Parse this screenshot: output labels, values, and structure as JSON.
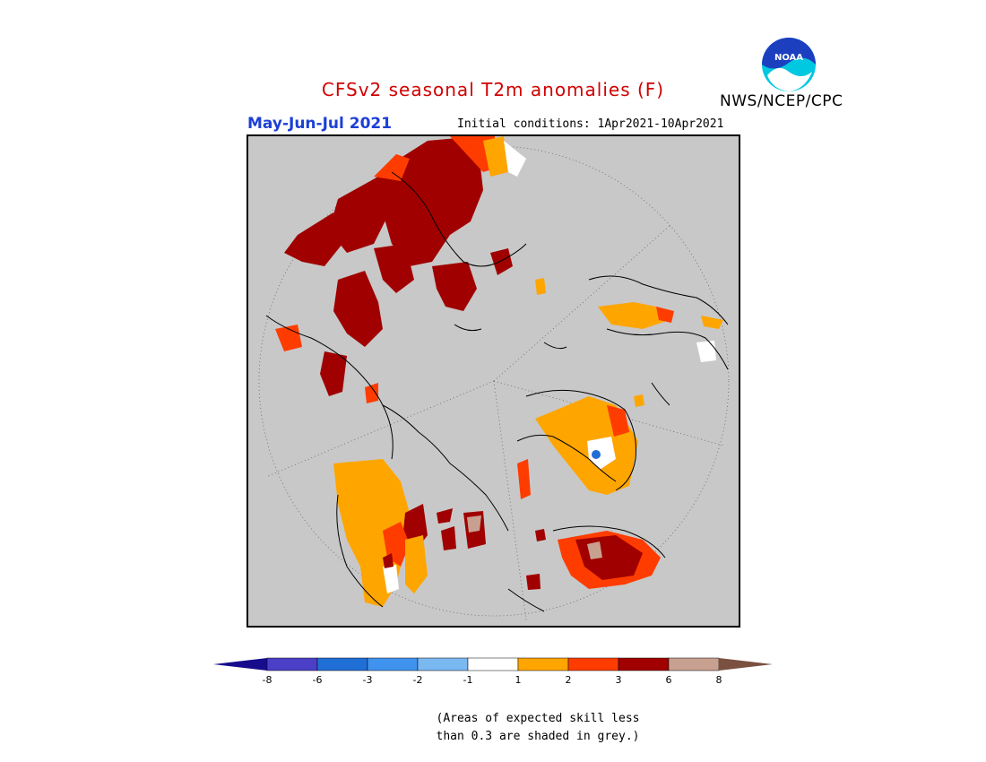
{
  "header": {
    "title": "CFSv2 seasonal T2m anomalies (F)",
    "period": "May-Jun-Jul 2021",
    "initial_conditions": "Initial conditions: 1Apr2021-10Apr2021",
    "agency": "NWS/NCEP/CPC",
    "logo_text": "NOAA"
  },
  "colorbar": {
    "levels": [
      "-8",
      "-6",
      "-3",
      "-2",
      "-1",
      "1",
      "2",
      "3",
      "6",
      "8"
    ],
    "colors": [
      "#160c8c",
      "#4b3fc7",
      "#1f6fd6",
      "#3f93ef",
      "#7ab8f2",
      "#ffffff",
      "#ffa500",
      "#ff3c00",
      "#a00000",
      "#c8a090",
      "#7a5040"
    ]
  },
  "note": {
    "line1": "(Areas of expected skill less",
    "line2": "than 0.3 are shaded in grey.)"
  },
  "colors": {
    "background_map": "#c8c8c8",
    "anomaly_1_2": "#ffa500",
    "anomaly_2_3": "#ff3c00",
    "anomaly_3_6": "#a00000",
    "anomaly_6_8": "#c8a090",
    "anomaly_neg": "#1f6fd6"
  }
}
